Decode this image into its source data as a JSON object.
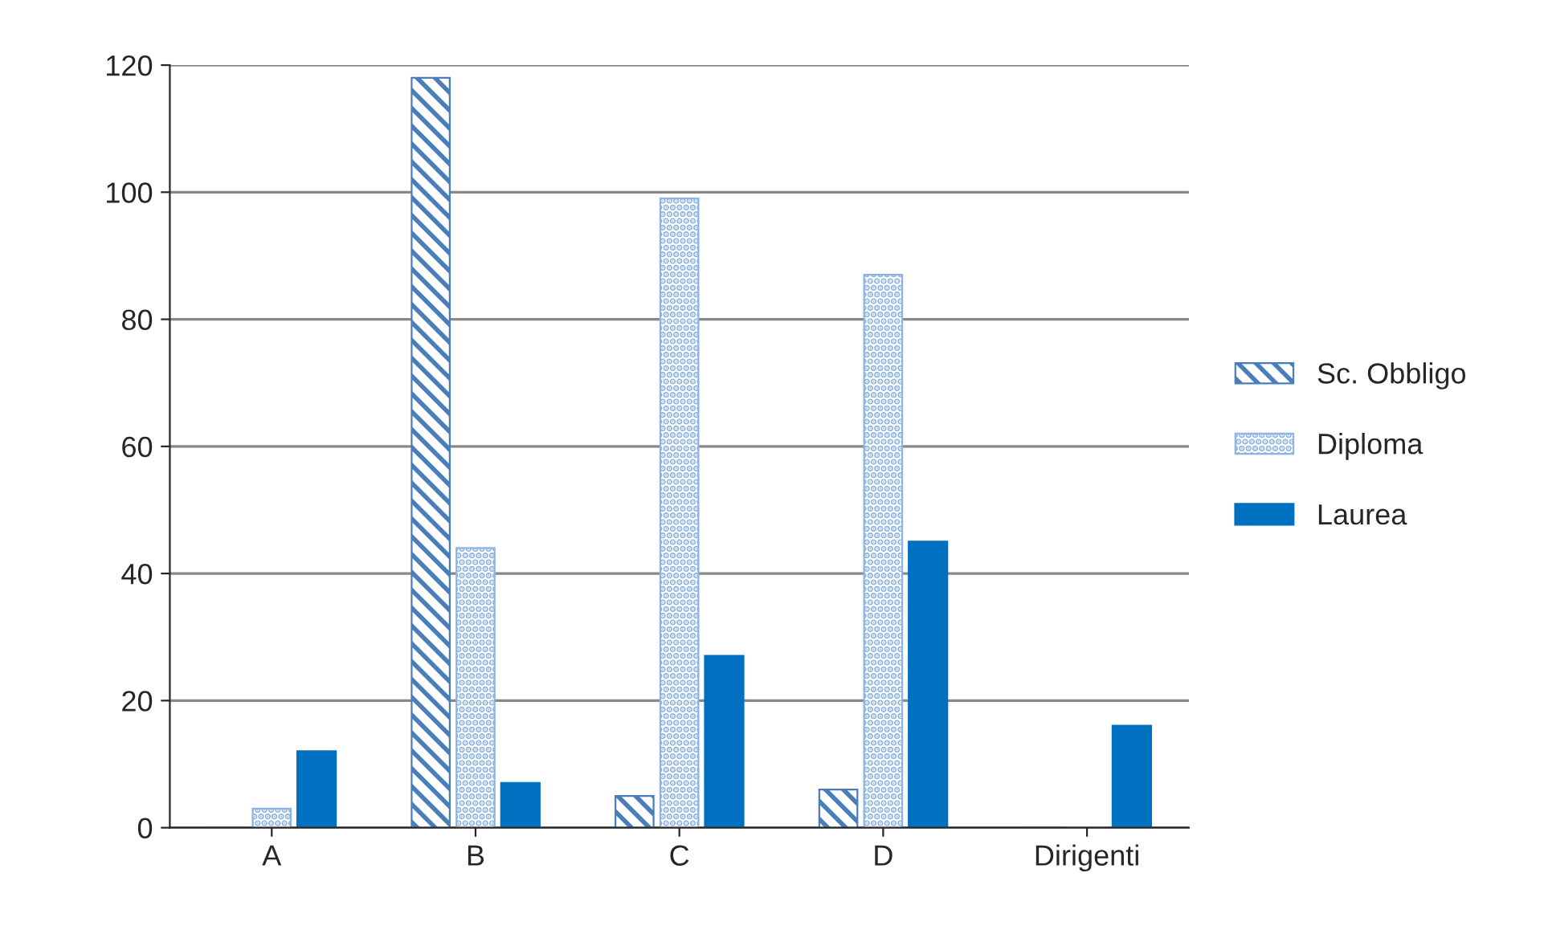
{
  "chart_data": {
    "type": "bar",
    "categories": [
      "A",
      "B",
      "C",
      "D",
      "Dirigenti"
    ],
    "series": [
      {
        "name": "Sc. Obbligo",
        "color": "#4a7ebb",
        "values": [
          0,
          118,
          5,
          6,
          0
        ]
      },
      {
        "name": "Diploma",
        "color": "#8eb4e3",
        "values": [
          3,
          44,
          99,
          87,
          0
        ]
      },
      {
        "name": "Laurea",
        "color": "#0070c0",
        "values": [
          12,
          7,
          27,
          45,
          16
        ]
      }
    ],
    "ylim": [
      0,
      120
    ],
    "yticks": [
      0,
      20,
      40,
      60,
      80,
      100,
      120
    ],
    "grid": "y",
    "legend": "right"
  }
}
